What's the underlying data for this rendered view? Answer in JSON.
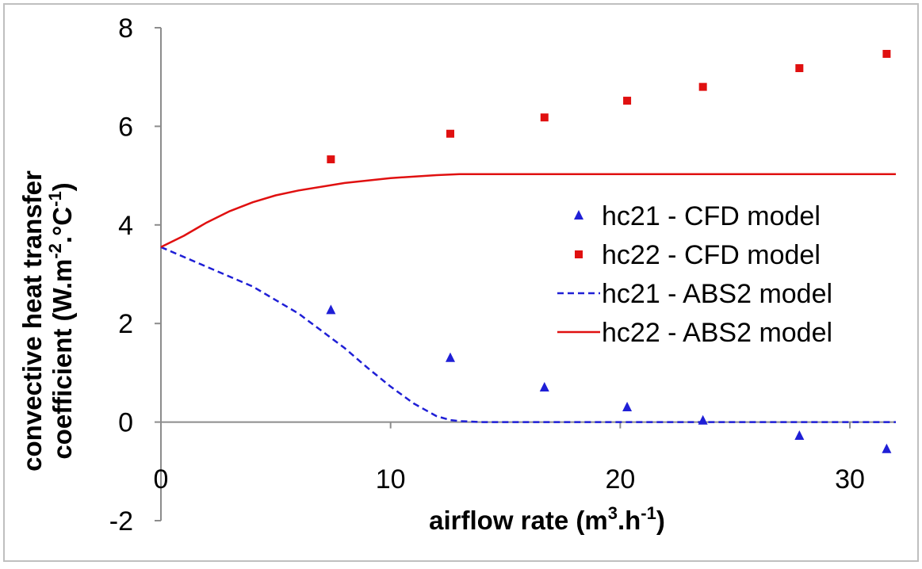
{
  "chart_data": {
    "type": "scatter",
    "title": "",
    "xlabel": {
      "base": "airflow rate (m",
      "sup1": "3",
      "mid": ".h",
      "sup2": "-1",
      "end": ")"
    },
    "ylabel": {
      "line1": "convective heat transfer",
      "line2_base": "coefficient (W.m",
      "sup1": "-2",
      "mid": ".°C",
      "sup2": "-1",
      "end": ")"
    },
    "xlim": [
      0,
      32
    ],
    "ylim": [
      -2,
      8
    ],
    "x_ticks": [
      "0",
      "10",
      "20",
      "30"
    ],
    "y_ticks": [
      "-2",
      "0",
      "2",
      "4",
      "6",
      "8"
    ],
    "grid": false,
    "legend_position": "right",
    "series": [
      {
        "name": "hc21 - CFD model",
        "kind": "marker",
        "marker": "triangle",
        "color": "#1f1fd6",
        "x": [
          7.4,
          12.6,
          16.7,
          20.3,
          23.6,
          27.8,
          31.6
        ],
        "y": [
          2.27,
          1.3,
          0.7,
          0.3,
          0.03,
          -0.28,
          -0.55
        ]
      },
      {
        "name": "hc22 - CFD model",
        "kind": "marker",
        "marker": "square",
        "color": "#e01010",
        "x": [
          7.4,
          12.6,
          16.7,
          20.3,
          23.6,
          27.8,
          31.6
        ],
        "y": [
          5.33,
          5.85,
          6.18,
          6.52,
          6.8,
          7.18,
          7.47
        ]
      },
      {
        "name": "hc21 - ABS2 model",
        "kind": "line",
        "dash": true,
        "color": "#1f1fd6",
        "x": [
          0,
          2,
          4,
          6,
          8,
          9,
          10,
          11,
          12,
          12.6,
          13,
          14,
          16,
          20,
          25,
          32
        ],
        "y": [
          3.55,
          3.15,
          2.75,
          2.2,
          1.5,
          1.1,
          0.72,
          0.38,
          0.12,
          0.04,
          0.02,
          0.0,
          0.0,
          0.0,
          0.0,
          0.0
        ]
      },
      {
        "name": "hc22 - ABS2 model",
        "kind": "line",
        "dash": false,
        "color": "#e01010",
        "x": [
          0,
          1,
          2,
          3,
          4,
          5,
          6,
          8,
          10,
          12,
          13,
          16,
          20,
          25,
          32
        ],
        "y": [
          3.55,
          3.78,
          4.05,
          4.28,
          4.46,
          4.6,
          4.7,
          4.85,
          4.95,
          5.01,
          5.03,
          5.03,
          5.03,
          5.03,
          5.03
        ]
      }
    ]
  }
}
